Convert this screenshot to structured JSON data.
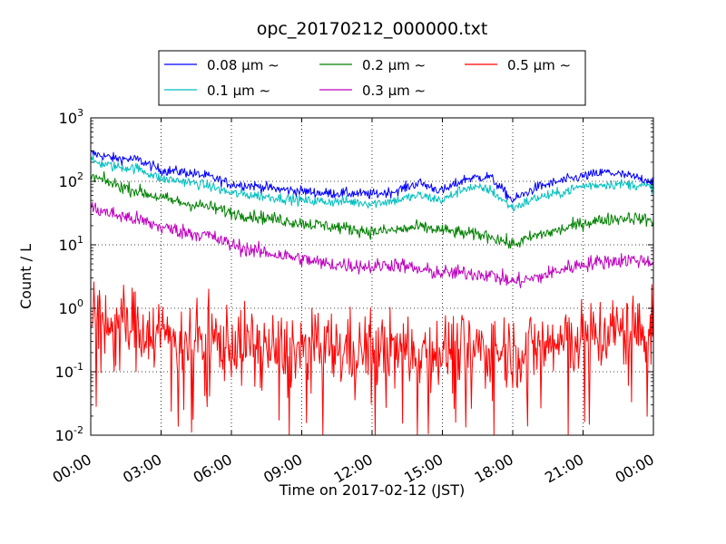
{
  "chart_data": {
    "type": "line",
    "title": "opc_20170212_000000.txt",
    "xlabel": "Time on 2017-02-12 (JST)",
    "ylabel": "Count / L",
    "y_scale": "log",
    "ylim": [
      0.01,
      1000
    ],
    "xlim": [
      "2017-02-12 00:00",
      "2017-02-13 00:00"
    ],
    "grid": true,
    "legend_position": "top-center, above plot",
    "x_ticks": [
      {
        "hour": 0,
        "label": "00:00"
      },
      {
        "hour": 3,
        "label": "03:00"
      },
      {
        "hour": 6,
        "label": "06:00"
      },
      {
        "hour": 9,
        "label": "09:00"
      },
      {
        "hour": 12,
        "label": "12:00"
      },
      {
        "hour": 15,
        "label": "15:00"
      },
      {
        "hour": 18,
        "label": "18:00"
      },
      {
        "hour": 21,
        "label": "21:00"
      },
      {
        "hour": 24,
        "label": "00:00"
      }
    ],
    "y_ticks": [
      {
        "value": 0.01,
        "base": "10",
        "exp": "-2"
      },
      {
        "value": 0.1,
        "base": "10",
        "exp": "-1"
      },
      {
        "value": 1,
        "base": "10",
        "exp": "0"
      },
      {
        "value": 10,
        "base": "10",
        "exp": "1"
      },
      {
        "value": 100,
        "base": "10",
        "exp": "2"
      },
      {
        "value": 1000,
        "base": "10",
        "exp": "3"
      }
    ],
    "x_hours": [
      0,
      1,
      2,
      3,
      4,
      5,
      6,
      7,
      8,
      9,
      10,
      11,
      12,
      13,
      14,
      15,
      16,
      17,
      18,
      19,
      20,
      21,
      22,
      23,
      24
    ],
    "series": [
      {
        "name": "0.08 μm ∼",
        "color": "#0000ff",
        "noise": 0.08,
        "values": [
          280,
          230,
          220,
          150,
          140,
          120,
          90,
          85,
          75,
          70,
          65,
          65,
          62,
          70,
          95,
          70,
          110,
          120,
          50,
          80,
          100,
          120,
          140,
          120,
          100
        ]
      },
      {
        "name": "0.1 μm ∼",
        "color": "#00bfbf",
        "noise": 0.08,
        "values": [
          210,
          170,
          160,
          110,
          100,
          85,
          65,
          60,
          55,
          50,
          48,
          48,
          45,
          50,
          60,
          50,
          80,
          75,
          38,
          55,
          65,
          85,
          90,
          90,
          80
        ]
      },
      {
        "name": "0.2 μm ∼",
        "color": "#008000",
        "noise": 0.1,
        "values": [
          120,
          90,
          70,
          55,
          45,
          40,
          32,
          28,
          25,
          22,
          20,
          18,
          16,
          17,
          19,
          17,
          15,
          14,
          10,
          14,
          17,
          22,
          25,
          27,
          24
        ]
      },
      {
        "name": "0.3 μm ∼",
        "color": "#bf00bf",
        "noise": 0.12,
        "values": [
          38,
          30,
          25,
          19,
          16,
          14,
          10,
          8,
          7,
          6,
          5,
          4.8,
          4.5,
          5,
          4,
          3.6,
          3.6,
          3.4,
          2.6,
          3,
          4,
          5,
          5.5,
          5.8,
          5.5
        ]
      },
      {
        "name": "0.5 μm ∼",
        "color": "#ff0000",
        "noise": 0.3,
        "values": [
          0.55,
          0.6,
          0.5,
          0.4,
          0.35,
          0.3,
          0.28,
          0.25,
          0.22,
          0.22,
          0.22,
          0.22,
          0.22,
          0.22,
          0.22,
          0.22,
          0.22,
          0.22,
          0.22,
          0.25,
          0.28,
          0.35,
          0.4,
          0.45,
          0.45
        ]
      }
    ]
  }
}
